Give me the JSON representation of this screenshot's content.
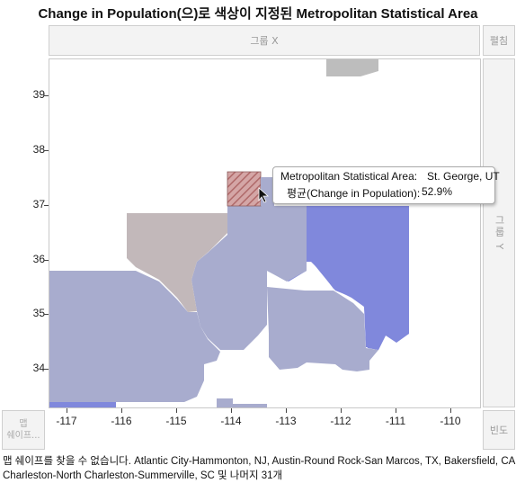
{
  "title": "Change in Population(으)로 색상이 지정된 Metropolitan Statistical Area",
  "zones": {
    "group_x": "그룹 X",
    "wrap": "펼침",
    "group_y": "그룹 Y",
    "freq": "빈도",
    "map_shape_line1": "맵",
    "map_shape_line2": "쉐이프..."
  },
  "colors": {
    "blue": "#8088dc",
    "slate": "#a8acce",
    "mauve": "#c2b8ba",
    "hatch": "#c48a8a",
    "gray": "#bdbdbd"
  },
  "axes": {
    "y_ticks": [
      "39",
      "38",
      "37",
      "36",
      "35",
      "34"
    ],
    "x_ticks": [
      "-117",
      "-116",
      "-115",
      "-114",
      "-113",
      "-112",
      "-111",
      "-110"
    ]
  },
  "tooltip": {
    "line1_label": "Metropolitan Statistical Area:",
    "line1_value": "St. George, UT",
    "line2_label": "평균(Change in Population):",
    "line2_value": "52.9%"
  },
  "footer": {
    "line1": "맵 쉐이프를 찾을 수 없습니다. Atlantic City-Hammonton, NJ, Austin-Round Rock-San Marcos, TX, Bakersfield, CA, Boise City, ID,",
    "line2": "Charleston-North Charleston-Summerville, SC 및 나머지 31개"
  }
}
